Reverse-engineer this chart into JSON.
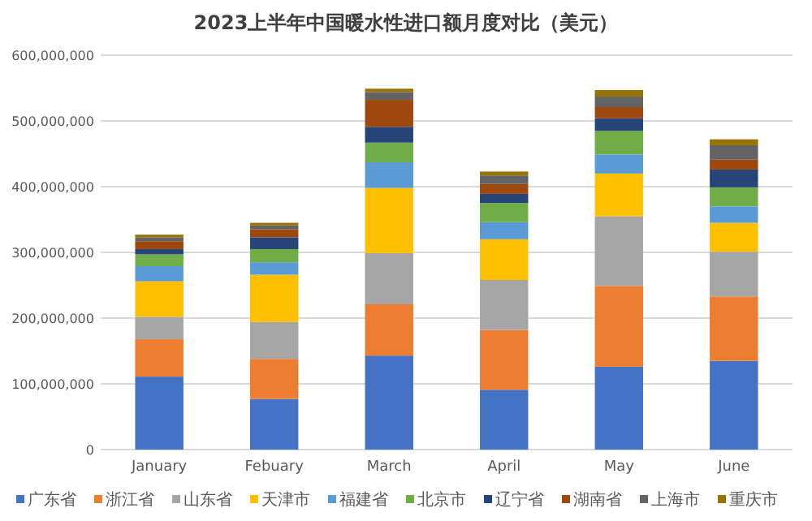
{
  "chart_data": {
    "type": "bar",
    "stacked": true,
    "title": "2023上半年中国暖水性进口额月度对比（美元）",
    "categories": [
      "January",
      "Febuary",
      "March",
      "April",
      "May",
      "June"
    ],
    "series": [
      {
        "name": "广东省",
        "color": "#4472c4",
        "values": [
          111000000,
          77000000,
          143000000,
          91000000,
          126000000,
          135000000
        ]
      },
      {
        "name": "浙江省",
        "color": "#ed7d31",
        "values": [
          57000000,
          61000000,
          78000000,
          91000000,
          123000000,
          98000000
        ]
      },
      {
        "name": "山东省",
        "color": "#a5a5a5",
        "values": [
          34000000,
          56000000,
          78000000,
          76000000,
          106000000,
          68000000
        ]
      },
      {
        "name": "天津市",
        "color": "#ffc000",
        "values": [
          54000000,
          72000000,
          99000000,
          62000000,
          65000000,
          44000000
        ]
      },
      {
        "name": "福建省",
        "color": "#5b9bd5",
        "values": [
          23000000,
          19000000,
          39000000,
          26000000,
          29000000,
          25000000
        ]
      },
      {
        "name": "北京市",
        "color": "#70ad47",
        "values": [
          18000000,
          20000000,
          30000000,
          29000000,
          36000000,
          29000000
        ]
      },
      {
        "name": "辽宁省",
        "color": "#264478",
        "values": [
          8000000,
          18000000,
          24000000,
          14000000,
          19000000,
          27000000
        ]
      },
      {
        "name": "湖南省",
        "color": "#9e480e",
        "values": [
          12000000,
          12000000,
          41000000,
          15000000,
          17000000,
          15000000
        ]
      },
      {
        "name": "上海市",
        "color": "#636363",
        "values": [
          6000000,
          6000000,
          12000000,
          13000000,
          16000000,
          22000000
        ]
      },
      {
        "name": "重庆市",
        "color": "#997300",
        "values": [
          4000000,
          4000000,
          5000000,
          6000000,
          10000000,
          9000000
        ]
      }
    ],
    "ylim": [
      0,
      600000000
    ],
    "yticks": [
      {
        "value": 0,
        "label": "0"
      },
      {
        "value": 100000000,
        "label": "100,000,000"
      },
      {
        "value": 200000000,
        "label": "200,000,000"
      },
      {
        "value": 300000000,
        "label": "300,000,000"
      },
      {
        "value": 400000000,
        "label": "400,000,000"
      },
      {
        "value": 500000000,
        "label": "500,000,000"
      },
      {
        "value": 600000000,
        "label": "600,000,000"
      }
    ],
    "grid": "y",
    "legend": "bottom"
  }
}
